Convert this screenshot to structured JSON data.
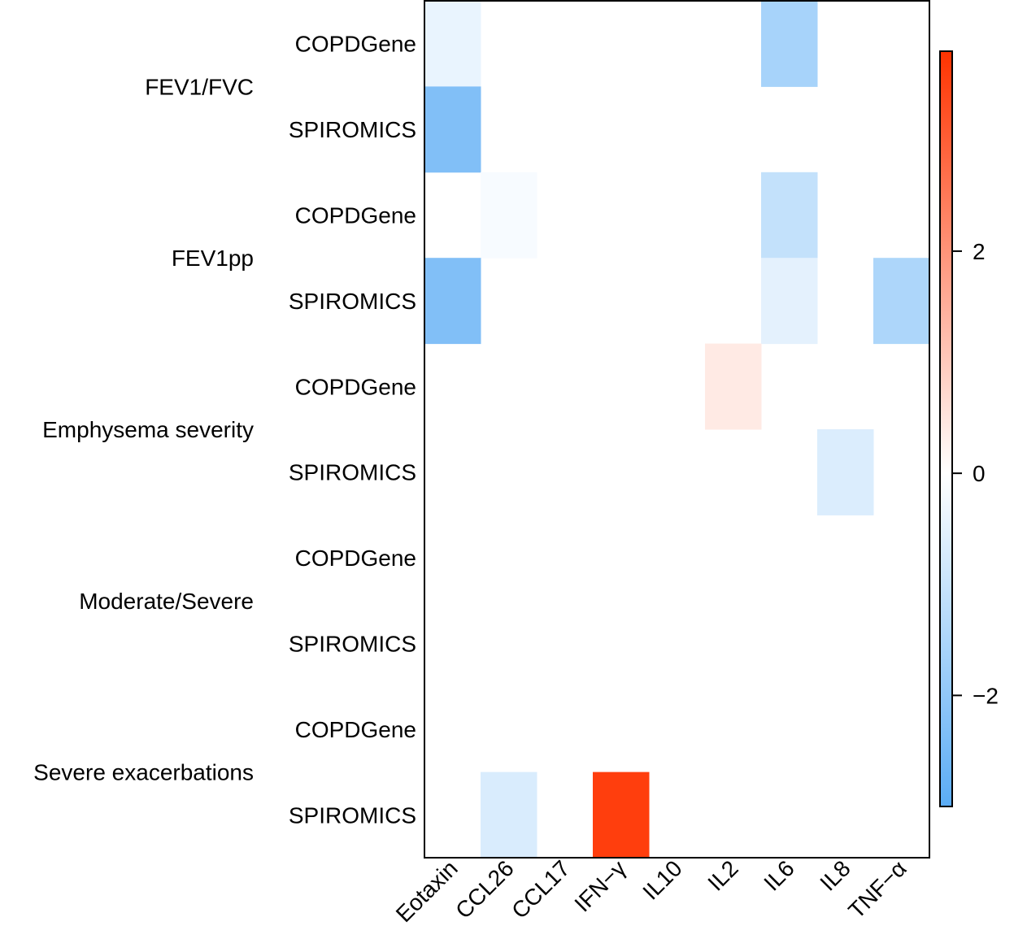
{
  "chart_data": {
    "type": "heatmap",
    "x_categories": [
      "Eotaxin",
      "CCL26",
      "CCL17",
      "IFN−γ",
      "IL10",
      "IL2",
      "IL6",
      "IL8",
      "TNF−α"
    ],
    "row_groups": [
      "FEV1/FVC",
      "FEV1pp",
      "Emphysema severity",
      "Moderate/Severe",
      "Severe exacerbations"
    ],
    "row_labels": [
      "COPDGene",
      "SPIROMICS",
      "COPDGene",
      "SPIROMICS",
      "COPDGene",
      "SPIROMICS",
      "COPDGene",
      "SPIROMICS",
      "COPDGene",
      "SPIROMICS"
    ],
    "values": [
      [
        -0.4,
        0,
        0,
        0,
        0,
        0,
        -1.6,
        0,
        0
      ],
      [
        -2.3,
        0,
        0,
        0,
        0,
        0,
        0,
        0,
        0
      ],
      [
        0,
        -0.15,
        0,
        0,
        0,
        0,
        -1.1,
        0,
        0
      ],
      [
        -2.3,
        0,
        0,
        0,
        0,
        0,
        -0.5,
        0,
        -1.5
      ],
      [
        0,
        0,
        0,
        0,
        0,
        0.4,
        0,
        0,
        0
      ],
      [
        0,
        0,
        0,
        0,
        0,
        0,
        0,
        -0.65,
        0
      ],
      [
        0,
        0,
        0,
        0,
        0,
        0,
        0,
        0,
        0
      ],
      [
        0,
        0,
        0,
        0,
        0,
        0,
        0,
        0,
        0
      ],
      [
        0,
        0,
        0,
        0,
        0,
        0,
        0,
        0,
        0
      ],
      [
        0,
        -0.7,
        0,
        3.6,
        0,
        0,
        0,
        0,
        0
      ]
    ],
    "colorbar": {
      "min": -3.0,
      "max": 3.8,
      "ticks": [
        2,
        0,
        -2
      ],
      "tick_labels": [
        "2",
        "0",
        "−2"
      ],
      "low_color": "#5aacf5",
      "mid_color": "#ffffff",
      "high_color": "#ff3300"
    }
  }
}
